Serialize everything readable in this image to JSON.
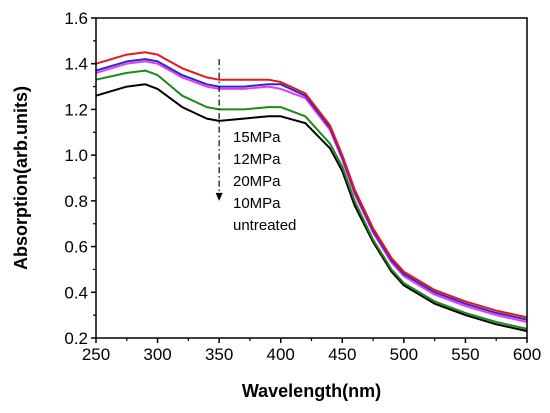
{
  "chart_data": {
    "type": "line",
    "xlabel": "Wavelength(nm)",
    "ylabel": "Absorption(arb.units)",
    "xlim": [
      250,
      600
    ],
    "ylim": [
      0.2,
      1.6
    ],
    "xticks": [
      250,
      300,
      350,
      400,
      450,
      500,
      550,
      600
    ],
    "yticks": [
      0.2,
      0.4,
      0.6,
      0.8,
      1.0,
      1.2,
      1.4,
      1.6
    ],
    "xtick_labels": [
      "250",
      "300",
      "350",
      "400",
      "450",
      "500",
      "550",
      "600"
    ],
    "ytick_labels": [
      "0.2",
      "0.4",
      "0.6",
      "0.8",
      "1.0",
      "1.2",
      "1.4",
      "1.6"
    ],
    "grid": false,
    "legend_placement": "center",
    "x": [
      250,
      275,
      290,
      300,
      320,
      340,
      350,
      370,
      390,
      400,
      420,
      440,
      450,
      460,
      475,
      490,
      500,
      525,
      550,
      575,
      600
    ],
    "series": [
      {
        "name": "15MPa",
        "color": "#e8151b",
        "values": [
          1.4,
          1.44,
          1.45,
          1.44,
          1.38,
          1.34,
          1.33,
          1.33,
          1.33,
          1.32,
          1.27,
          1.13,
          1.0,
          0.85,
          0.68,
          0.55,
          0.49,
          0.41,
          0.36,
          0.32,
          0.29
        ]
      },
      {
        "name": "12MPa",
        "color": "#2a2ad0",
        "values": [
          1.37,
          1.41,
          1.42,
          1.41,
          1.35,
          1.31,
          1.3,
          1.3,
          1.31,
          1.31,
          1.26,
          1.12,
          0.99,
          0.84,
          0.67,
          0.54,
          0.48,
          0.4,
          0.35,
          0.31,
          0.28
        ]
      },
      {
        "name": "20MPa",
        "color": "#e73ce8",
        "values": [
          1.36,
          1.4,
          1.41,
          1.4,
          1.34,
          1.3,
          1.29,
          1.29,
          1.3,
          1.29,
          1.25,
          1.11,
          0.98,
          0.83,
          0.66,
          0.53,
          0.47,
          0.39,
          0.34,
          0.3,
          0.27
        ]
      },
      {
        "name": "10MPa",
        "color": "#1a8a1a",
        "values": [
          1.33,
          1.36,
          1.37,
          1.35,
          1.26,
          1.21,
          1.2,
          1.2,
          1.21,
          1.21,
          1.17,
          1.05,
          0.95,
          0.8,
          0.63,
          0.5,
          0.44,
          0.36,
          0.31,
          0.27,
          0.24
        ]
      },
      {
        "name": "untreated",
        "color": "#000000",
        "values": [
          1.26,
          1.3,
          1.31,
          1.29,
          1.21,
          1.16,
          1.15,
          1.16,
          1.17,
          1.17,
          1.14,
          1.03,
          0.93,
          0.78,
          0.62,
          0.49,
          0.43,
          0.35,
          0.3,
          0.26,
          0.23
        ]
      }
    ],
    "annotation": "dash-dot arrow pointing down at 350 nm, from 1.42 to 0.82"
  }
}
